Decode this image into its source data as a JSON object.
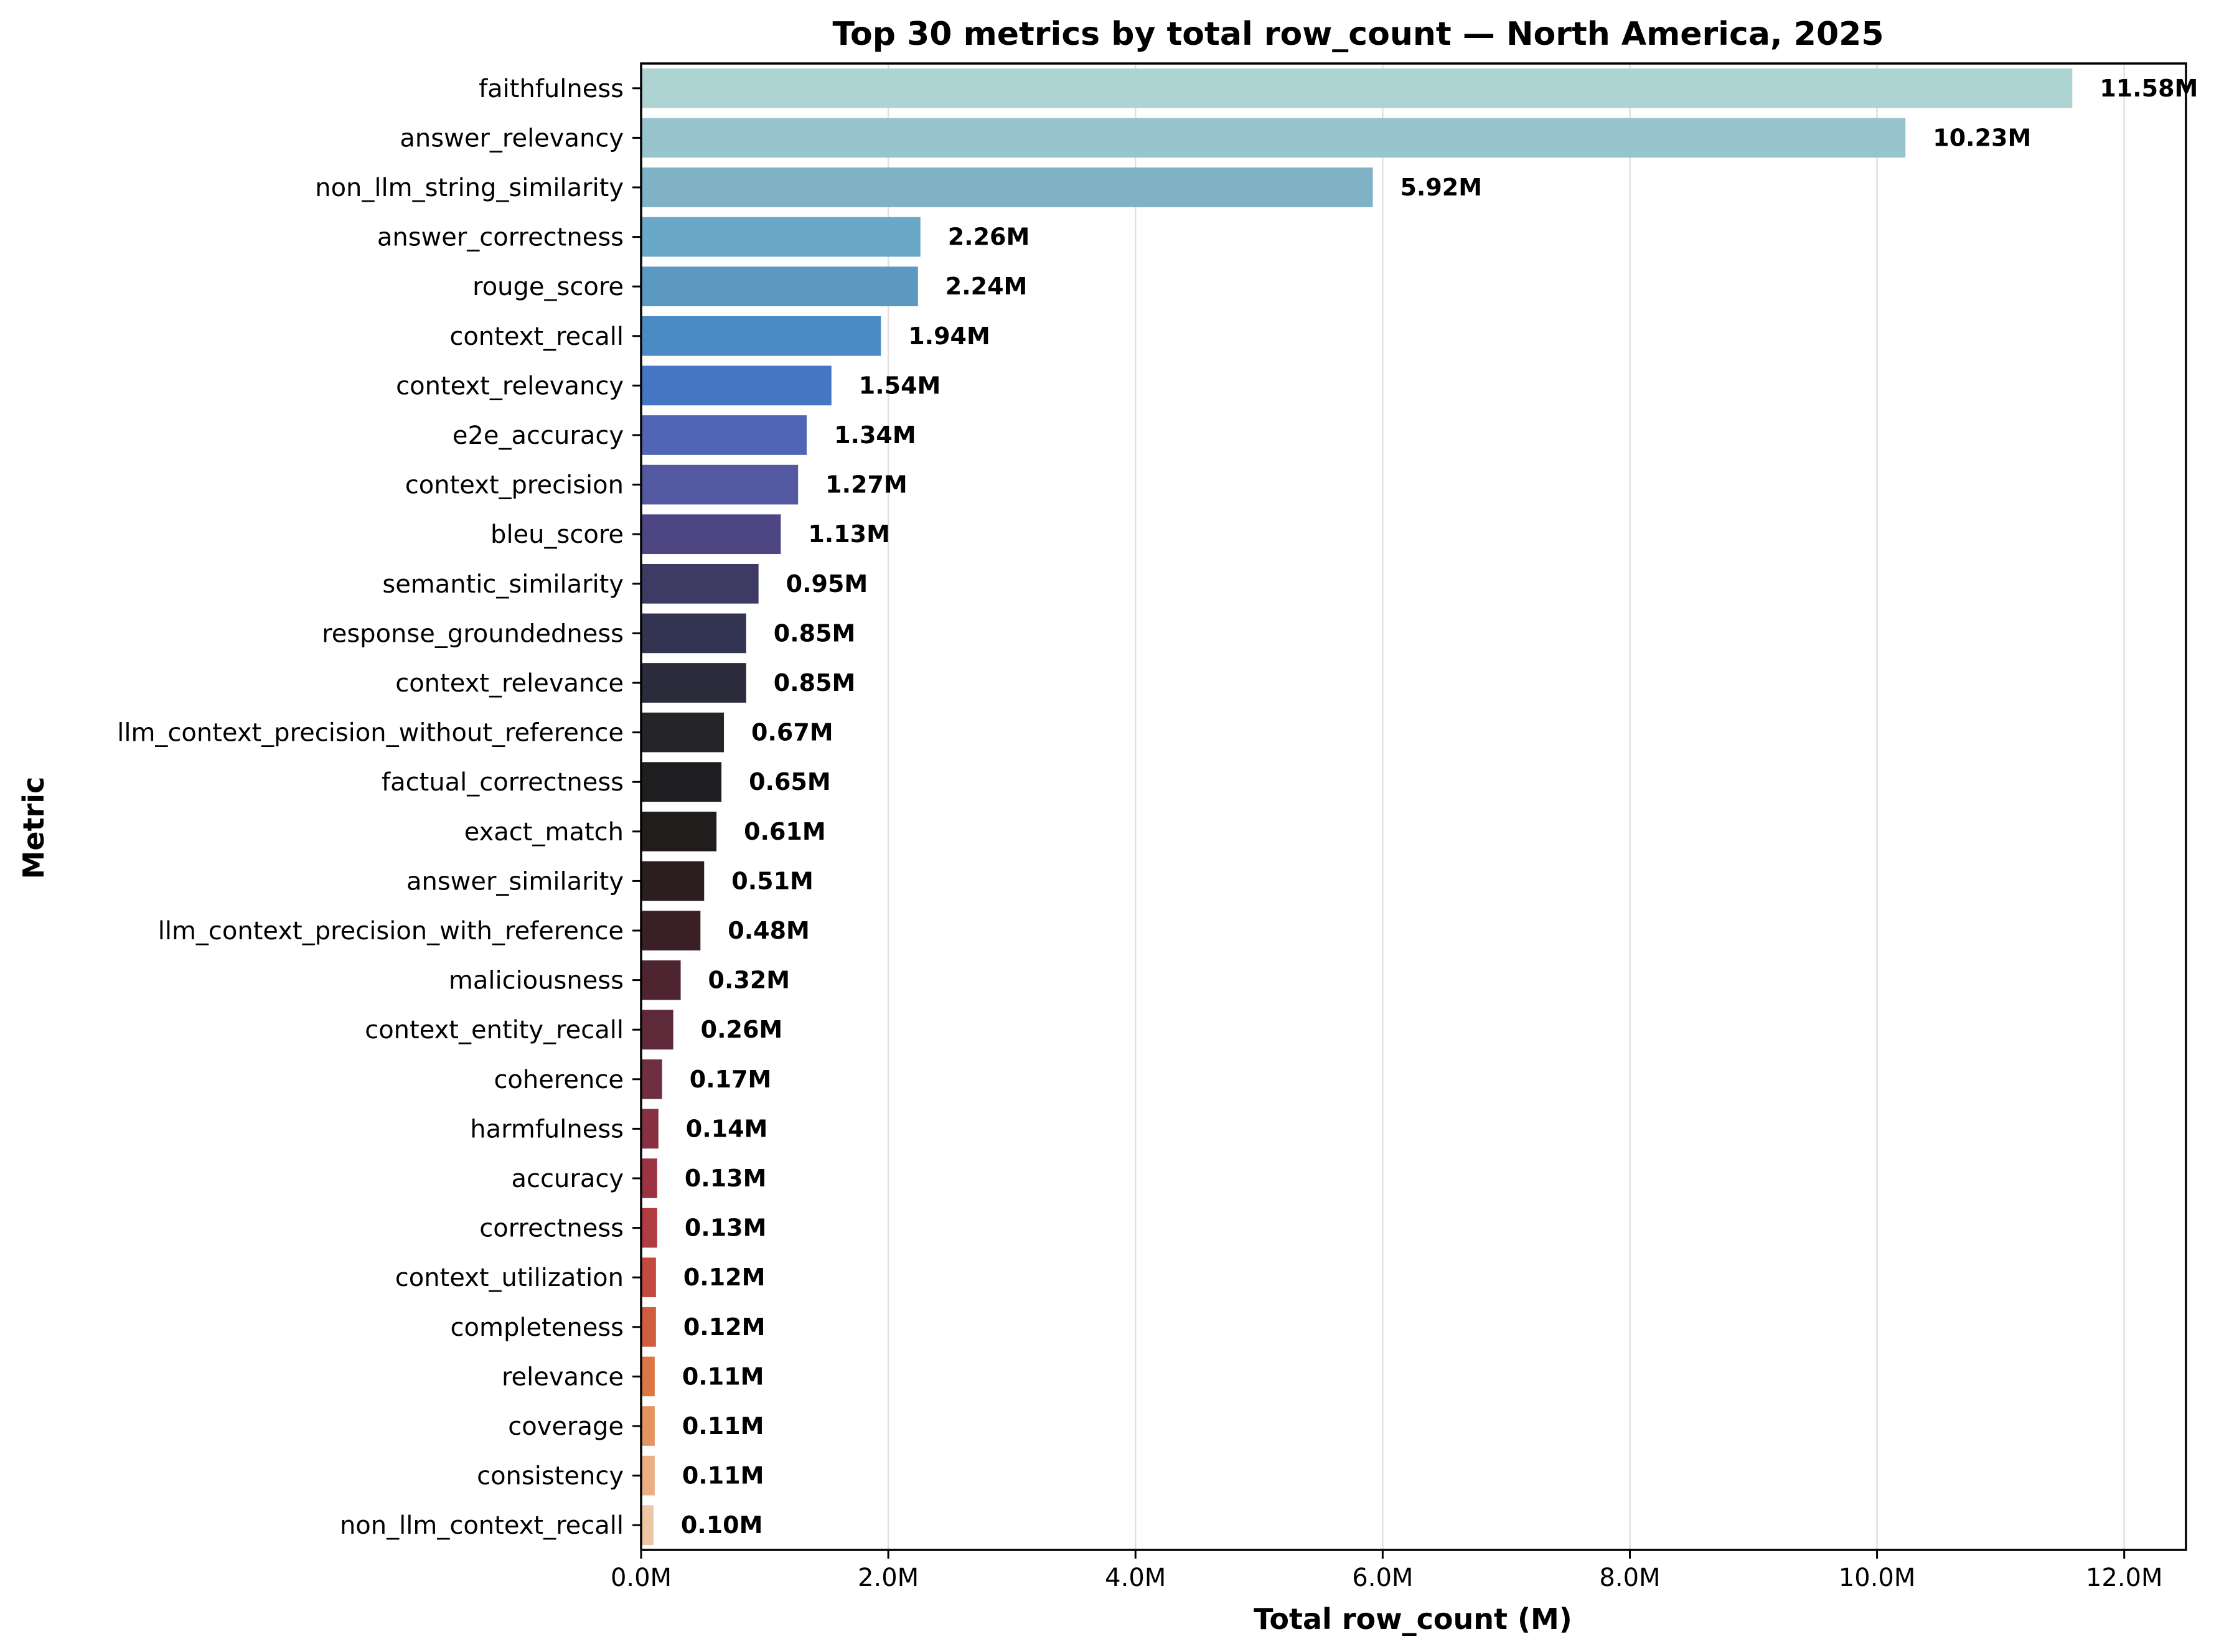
{
  "chart_data": {
    "type": "bar",
    "orientation": "horizontal",
    "title": "Top 30 metrics by total row_count — North America, 2025",
    "xlabel": "Total row_count (M)",
    "ylabel": "Metric",
    "xlim": [
      0,
      12.5
    ],
    "xticks": [
      0,
      2,
      4,
      6,
      8,
      10,
      12
    ],
    "xtick_labels": [
      "0.0M",
      "2.0M",
      "4.0M",
      "6.0M",
      "8.0M",
      "10.0M",
      "12.0M"
    ],
    "grid": "vertical",
    "legend": "none",
    "categories": [
      "faithfulness",
      "answer_relevancy",
      "non_llm_string_similarity",
      "answer_correctness",
      "rouge_score",
      "context_recall",
      "context_relevancy",
      "e2e_accuracy",
      "context_precision",
      "bleu_score",
      "semantic_similarity",
      "response_groundedness",
      "context_relevance",
      "llm_context_precision_without_reference",
      "factual_correctness",
      "exact_match",
      "answer_similarity",
      "llm_context_precision_with_reference",
      "maliciousness",
      "context_entity_recall",
      "coherence",
      "harmfulness",
      "accuracy",
      "correctness",
      "context_utilization",
      "completeness",
      "relevance",
      "coverage",
      "consistency",
      "non_llm_context_recall"
    ],
    "values": [
      11.58,
      10.23,
      5.92,
      2.26,
      2.24,
      1.94,
      1.54,
      1.34,
      1.27,
      1.13,
      0.95,
      0.85,
      0.85,
      0.67,
      0.65,
      0.61,
      0.51,
      0.48,
      0.32,
      0.26,
      0.17,
      0.14,
      0.13,
      0.13,
      0.12,
      0.12,
      0.11,
      0.11,
      0.11,
      0.1
    ],
    "value_labels": [
      "11.58M",
      "10.23M",
      "5.92M",
      "2.26M",
      "2.24M",
      "1.94M",
      "1.54M",
      "1.34M",
      "1.27M",
      "1.13M",
      "0.95M",
      "0.85M",
      "0.85M",
      "0.67M",
      "0.65M",
      "0.61M",
      "0.51M",
      "0.48M",
      "0.32M",
      "0.26M",
      "0.17M",
      "0.14M",
      "0.13M",
      "0.13M",
      "0.12M",
      "0.12M",
      "0.11M",
      "0.11M",
      "0.11M",
      "0.10M"
    ],
    "colors": [
      "#aed3d3",
      "#97c4cd",
      "#80b2c5",
      "#6aa8c8",
      "#5b99c1",
      "#4b8ac5",
      "#4476c4",
      "#5065b5",
      "#5358a0",
      "#4d4683",
      "#3d3b63",
      "#333352",
      "#2b2b3b",
      "#242429",
      "#1e1e20",
      "#221d1d",
      "#2c1d20",
      "#3a2026",
      "#4d2430",
      "#5e2a3a",
      "#6f2f40",
      "#863042",
      "#9b3342",
      "#b03c42",
      "#c24a40",
      "#cf5e3f",
      "#da7745",
      "#e39460",
      "#eab083",
      "#edc6a6"
    ]
  }
}
